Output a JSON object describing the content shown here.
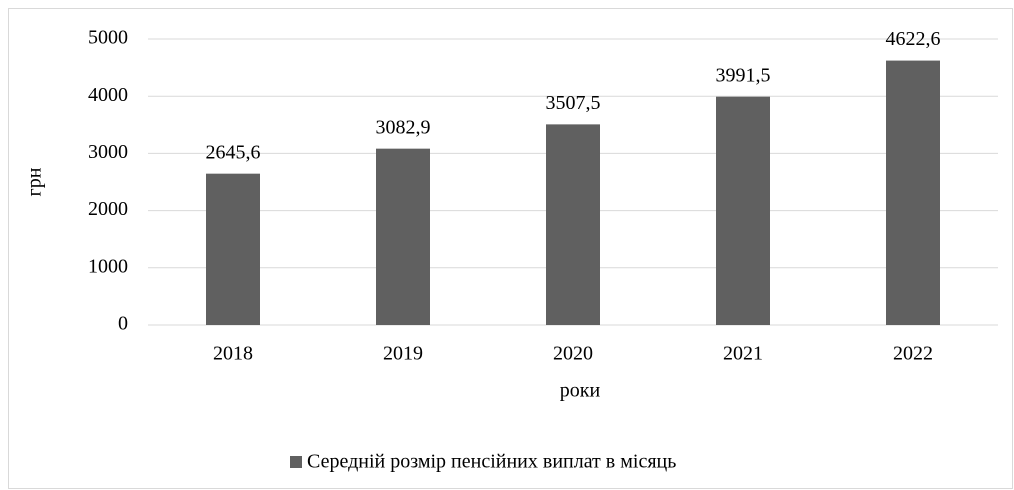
{
  "chart_data": {
    "type": "bar",
    "categories": [
      "2018",
      "2019",
      "2020",
      "2021",
      "2022"
    ],
    "series": [
      {
        "name": "Середній розмір пенсійних виплат в місяць",
        "color": "#606060",
        "values": [
          2645.6,
          3082.9,
          3507.5,
          3991.5,
          4622.6
        ],
        "value_labels": [
          "2645,6",
          "3082,9",
          "3507,5",
          "3991,5",
          "4622,6"
        ]
      }
    ],
    "x_label": "роки",
    "y_label": "грн",
    "ylim": [
      0,
      5000
    ],
    "yticks": [
      0,
      1000,
      2000,
      3000,
      4000,
      5000
    ],
    "grid": true,
    "legend": "bottom"
  }
}
